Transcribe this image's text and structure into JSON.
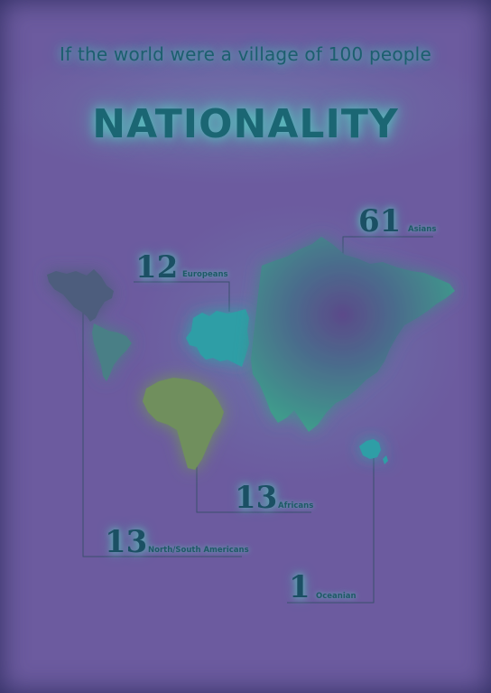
{
  "header": {
    "subtitle": "If the world were a village of 100 people",
    "title": "NATIONALITY"
  },
  "regions": [
    {
      "key": "asians",
      "number": "61",
      "label": "Asians"
    },
    {
      "key": "europeans",
      "number": "12",
      "label": "Europeans"
    },
    {
      "key": "africans",
      "number": "13",
      "label": "Africans"
    },
    {
      "key": "americans",
      "number": "13",
      "label": "North/South Americans"
    },
    {
      "key": "oceanian",
      "number": "1",
      "label": "Oceanian"
    }
  ],
  "colors": {
    "background": "#6c5b9f",
    "glow": "#57c0bc",
    "asia_fill": "#3d8c86",
    "europe_fill": "#2f9ea6",
    "africa_fill": "#6f8f5d",
    "americas_fill": "#4d5d7d",
    "text": "#1b5f6e"
  }
}
